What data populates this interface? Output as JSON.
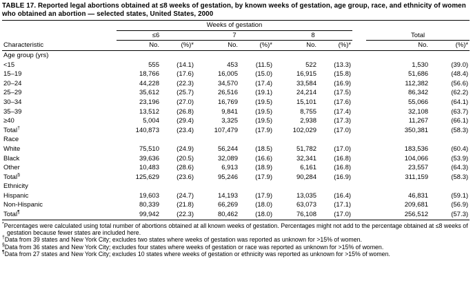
{
  "title": "TABLE 17. Reported legal abortions obtained at ≤8 weeks of gestation, by known weeks of gestation, age group, race, and ethnicity of women who obtained an abortion — selected states, United States, 2000",
  "table": {
    "weeks_header": "Weeks of gestation",
    "characteristic_label": "Characteristic",
    "col_groups": [
      "≤6",
      "7",
      "8"
    ],
    "total_label": "Total",
    "no_label": "No.",
    "pct_label": "(%)*",
    "sections": [
      {
        "name": "Age group (yrs)",
        "rows": [
          {
            "label": "<15",
            "values": [
              "555",
              "(14.1)",
              "453",
              "(11.5)",
              "522",
              "(13.3)",
              "1,530",
              "(39.0)"
            ]
          },
          {
            "label": "15–19",
            "values": [
              "18,766",
              "(17.6)",
              "16,005",
              "(15.0)",
              "16,915",
              "(15.8)",
              "51,686",
              "(48.4)"
            ]
          },
          {
            "label": "20–24",
            "values": [
              "44,228",
              "(22.3)",
              "34,570",
              "(17.4)",
              "33,584",
              "(16.9)",
              "112,382",
              "(56.6)"
            ]
          },
          {
            "label": "25–29",
            "values": [
              "35,612",
              "(25.7)",
              "26,516",
              "(19.1)",
              "24,214",
              "(17.5)",
              "86,342",
              "(62.2)"
            ]
          },
          {
            "label": "30–34",
            "values": [
              "23,196",
              "(27.0)",
              "16,769",
              "(19.5)",
              "15,101",
              "(17.6)",
              "55,066",
              "(64.1)"
            ]
          },
          {
            "label": "35–39",
            "values": [
              "13,512",
              "(26.8)",
              "9,841",
              "(19.5)",
              "8,755",
              "(17.4)",
              "32,108",
              "(63.7)"
            ]
          },
          {
            "label": "≥40",
            "values": [
              "5,004",
              "(29.4)",
              "3,325",
              "(19.5)",
              "2,938",
              "(17.3)",
              "11,267",
              "(66.1)"
            ]
          },
          {
            "label": "Total",
            "sup": "†",
            "values": [
              "140,873",
              "(23.4)",
              "107,479",
              "(17.9)",
              "102,029",
              "(17.0)",
              "350,381",
              "(58.3)"
            ]
          }
        ]
      },
      {
        "name": "Race",
        "rows": [
          {
            "label": "White",
            "values": [
              "75,510",
              "(24.9)",
              "56,244",
              "(18.5)",
              "51,782",
              "(17.0)",
              "183,536",
              "(60.4)"
            ]
          },
          {
            "label": "Black",
            "values": [
              "39,636",
              "(20.5)",
              "32,089",
              "(16.6)",
              "32,341",
              "(16.8)",
              "104,066",
              "(53.9)"
            ]
          },
          {
            "label": "Other",
            "values": [
              "10,483",
              "(28.6)",
              "6,913",
              "(18.9)",
              "6,161",
              "(16.8)",
              "23,557",
              "(64.3)"
            ]
          },
          {
            "label": "Total",
            "sup": "§",
            "values": [
              "125,629",
              "(23.6)",
              "95,246",
              "(17.9)",
              "90,284",
              "(16.9)",
              "311,159",
              "(58.3)"
            ]
          }
        ]
      },
      {
        "name": "Ethnicity",
        "rows": [
          {
            "label": "Hispanic",
            "values": [
              "19,603",
              "(24.7)",
              "14,193",
              "(17.9)",
              "13,035",
              "(16.4)",
              "46,831",
              "(59.1)"
            ]
          },
          {
            "label": "Non-Hispanic",
            "values": [
              "80,339",
              "(21.8)",
              "66,269",
              "(18.0)",
              "63,073",
              "(17.1)",
              "209,681",
              "(56.9)"
            ]
          },
          {
            "label": "Total",
            "sup": "¶",
            "values": [
              "99,942",
              "(22.3)",
              "80,462",
              "(18.0)",
              "76,108",
              "(17.0)",
              "256,512",
              "(57.3)"
            ]
          }
        ]
      }
    ]
  },
  "footnotes": [
    {
      "marker": "*",
      "text": "Percentages were calculated using total number of abortions obtained at all known weeks of gestation. Percentages might not add to the percentage obtained at ≤8 weeks of gestation because fewer states are included here."
    },
    {
      "marker": "†",
      "text": "Data from 39 states and New York City; excludes two states where weeks of gestation was reported as unknown for >15% of women."
    },
    {
      "marker": "§",
      "text": "Data from 36 states and New York City; excludes four states where weeks of gestation or race was reported as unknown for >15% of women."
    },
    {
      "marker": "¶",
      "text": "Data from 27 states and New York City; excludes 10 states where weeks of gestation or ethnicity was reported as unknown for >15% of women."
    }
  ]
}
